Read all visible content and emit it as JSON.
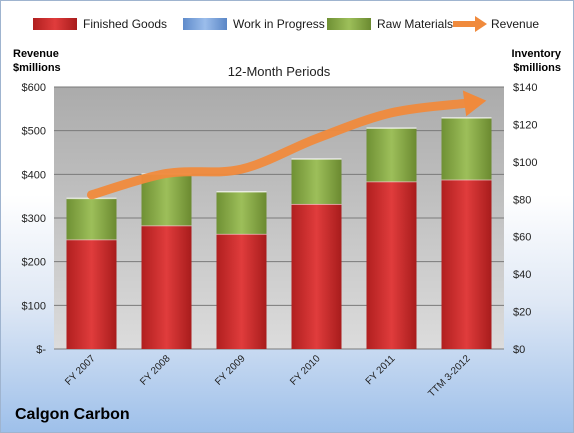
{
  "colors": {
    "finished_goods": "#cc2c2c",
    "work_in_progress": "#7ea6de",
    "raw_materials": "#8aad4a",
    "revenue": "#f08a3c"
  },
  "chart_data": {
    "type": "bar",
    "stacked": true,
    "title": "12-Month Periods",
    "company": "Calgon Carbon",
    "categories": [
      "FY 2007",
      "FY 2008",
      "FY 2009",
      "FY 2010",
      "FY 2011",
      "TTM 3-2012"
    ],
    "left_axis": {
      "label_line1": "Revenue",
      "label_line2": "$millions",
      "ylim": [
        0,
        600
      ],
      "ticks": [
        {
          "value": 0,
          "label": "$-"
        },
        {
          "value": 100,
          "label": "$100"
        },
        {
          "value": 200,
          "label": "$200"
        },
        {
          "value": 300,
          "label": "$300"
        },
        {
          "value": 400,
          "label": "$400"
        },
        {
          "value": 500,
          "label": "$500"
        },
        {
          "value": 600,
          "label": "$600"
        }
      ]
    },
    "right_axis": {
      "label_line1": "Inventory",
      "label_line2": "$millions",
      "ylim": [
        0,
        140
      ],
      "ticks": [
        {
          "value": 0,
          "label": "$0"
        },
        {
          "value": 20,
          "label": "$20"
        },
        {
          "value": 40,
          "label": "$40"
        },
        {
          "value": 60,
          "label": "$60"
        },
        {
          "value": 80,
          "label": "$80"
        },
        {
          "value": 100,
          "label": "$100"
        },
        {
          "value": 120,
          "label": "$120"
        },
        {
          "value": 140,
          "label": "$140"
        }
      ]
    },
    "bar_series": [
      {
        "name": "Finished Goods",
        "color_key": "finished_goods",
        "values": [
          58.5,
          66,
          61.5,
          77.5,
          89.5,
          90.5
        ]
      },
      {
        "name": "Work in Progress",
        "color_key": "work_in_progress",
        "values": [
          0,
          0,
          0,
          0,
          0,
          0
        ]
      },
      {
        "name": "Raw Materials",
        "color_key": "raw_materials",
        "values": [
          22,
          27.5,
          22.5,
          24,
          28.5,
          33
        ]
      }
    ],
    "line_series": {
      "name": "Revenue",
      "color_key": "revenue",
      "axis": "left",
      "values": [
        353,
        402,
        412,
        482,
        541,
        563
      ]
    },
    "legend": [
      "Finished Goods",
      "Work in Progress",
      "Raw Materials",
      "Revenue"
    ],
    "legend_position": "top",
    "grid": true
  }
}
